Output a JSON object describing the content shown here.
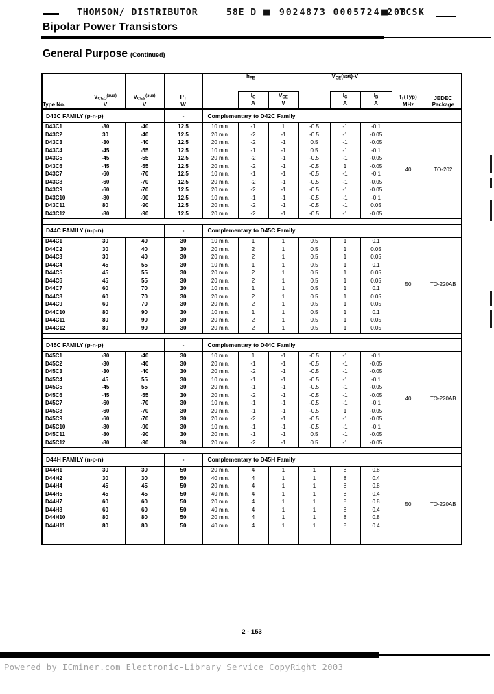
{
  "banner": {
    "brand": "THOMSON/ DISTRIBUTOR",
    "code": "58E D",
    "serial": "9024873 0005724 208",
    "suffix": "TCSK",
    "box_glyph": "■"
  },
  "page": {
    "product_line": "Bipolar Power Transistors",
    "section_title": "General Purpose",
    "section_subtitle": "(Continued)",
    "page_number": "2 - 153",
    "watermark": "Powered by ICminer.com Electronic-Library Service CopyRight 2003"
  },
  "table": {
    "headers": {
      "type_no": "Type No.",
      "vceo": {
        "base": "V",
        "sub": "CEO",
        "sup": "(sus)",
        "unit": "V"
      },
      "vces": {
        "base": "V",
        "sub": "CES",
        "sup": "(sus)",
        "unit": "V"
      },
      "pt": {
        "base": "P",
        "sub": "T",
        "unit": "W"
      },
      "hfe": {
        "base": "h",
        "sub": "FE"
      },
      "hfe_ic": {
        "base": "I",
        "sub": "C",
        "unit": "A"
      },
      "hfe_vce": {
        "base": "V",
        "sub": "CE",
        "unit": "V"
      },
      "vcesat": {
        "base": "V",
        "sub": "CE",
        "suffix": "(sat)-V"
      },
      "sat_ic": {
        "base": "I",
        "sub": "C",
        "unit": "A"
      },
      "sat_ib": {
        "base": "I",
        "sub": "B",
        "unit": "A"
      },
      "ft": {
        "base": "f",
        "sub": "T",
        "suffix": "(Typ)",
        "unit": "MHz"
      },
      "jedec": {
        "line1": "JEDEC",
        "line2": "Package"
      }
    },
    "sections": [
      {
        "family": "D43C FAMILY (p-n-p)",
        "pt_cell": "-",
        "note": "Complementary to D42C Family",
        "ft": "40",
        "package": "TO-202",
        "rows": [
          [
            "D43C1",
            "-30",
            "-40",
            "12.5",
            "10 min.",
            "-1",
            "1",
            "-0.5",
            "-1",
            "-0.1"
          ],
          [
            "D43C2",
            "30",
            "-40",
            "12.5",
            "20 min.",
            "-2",
            "-1",
            "-0.5",
            "-1",
            "-0.05"
          ],
          [
            "D43C3",
            "-30",
            "-40",
            "12.5",
            "20 min.",
            "-2",
            "-1",
            "0.5",
            "-1",
            "-0.05"
          ],
          [
            "D43C4",
            "-45",
            "-55",
            "12.5",
            "10 min.",
            "-1",
            "-1",
            "0.5",
            "-1",
            "-0.1"
          ],
          [
            "D43C5",
            "-45",
            "-55",
            "12.5",
            "20 min.",
            "-2",
            "-1",
            "-0.5",
            "-1",
            "-0.05"
          ],
          [
            "D43C6",
            "-45",
            "-55",
            "12.5",
            "20 min.",
            "-2",
            "-1",
            "-0.5",
            "1",
            "-0.05"
          ],
          [
            "D43C7",
            "-60",
            "-70",
            "12.5",
            "10 min.",
            "-1",
            "-1",
            "-0.5",
            "-1",
            "-0.1"
          ],
          [
            "D43C8",
            "-60",
            "-70",
            "12.5",
            "20 min.",
            "-2",
            "-1",
            "-0.5",
            "-1",
            "-0.05"
          ],
          [
            "D43C9",
            "-60",
            "-70",
            "12.5",
            "20 min.",
            "-2",
            "-1",
            "-0.5",
            "-1",
            "-0.05"
          ],
          [
            "D43C10",
            "-80",
            "-90",
            "12.5",
            "10 min.",
            "-1",
            "-1",
            "-0.5",
            "-1",
            "-0.1"
          ],
          [
            "D43C11",
            "80",
            "-90",
            "12.5",
            "20 min.",
            "-2",
            "-1",
            "-0.5",
            "-1",
            "0.05"
          ],
          [
            "D43C12",
            "-80",
            "-90",
            "12.5",
            "20 min.",
            "-2",
            "-1",
            "-0.5",
            "-1",
            "-0.05"
          ]
        ]
      },
      {
        "family": "D44C FAMILY (n-p-n)",
        "pt_cell": "-",
        "note": "Complementary to D45C Family",
        "ft": "50",
        "package": "TO-220AB",
        "rows": [
          [
            "D44C1",
            "30",
            "40",
            "30",
            "10 min.",
            "1",
            "1",
            "0.5",
            "1",
            "0.1"
          ],
          [
            "D44C2",
            "30",
            "40",
            "30",
            "20 min.",
            "2",
            "1",
            "0.5",
            "1",
            "0.05"
          ],
          [
            "D44C3",
            "30",
            "40",
            "30",
            "20 min.",
            "2",
            "1",
            "0.5",
            "1",
            "0.05"
          ],
          [
            "D44C4",
            "45",
            "55",
            "30",
            "10 min.",
            "1",
            "1",
            "0.5",
            "1",
            "0.1"
          ],
          [
            "D44C5",
            "45",
            "55",
            "30",
            "20 min.",
            "2",
            "1",
            "0.5",
            "1",
            "0.05"
          ],
          [
            "D44C6",
            "45",
            "55",
            "30",
            "20 min.",
            "2",
            "1",
            "0.5",
            "1",
            "0.05"
          ],
          [
            "D44C7",
            "60",
            "70",
            "30",
            "10 min.",
            "1",
            "1",
            "0.5",
            "1",
            "0.1"
          ],
          [
            "D44C8",
            "60",
            "70",
            "30",
            "20 min.",
            "2",
            "1",
            "0.5",
            "1",
            "0.05"
          ],
          [
            "D44C9",
            "60",
            "70",
            "30",
            "20 min.",
            "2",
            "1",
            "0.5",
            "1",
            "0.05"
          ],
          [
            "D44C10",
            "80",
            "90",
            "30",
            "10 min.",
            "1",
            "1",
            "0.5",
            "1",
            "0.1"
          ],
          [
            "D44C11",
            "80",
            "90",
            "30",
            "20 min.",
            "2",
            "1",
            "0.5",
            "1",
            "0.05"
          ],
          [
            "D44C12",
            "80",
            "90",
            "30",
            "20 min.",
            "2",
            "1",
            "0.5",
            "1",
            "0.05"
          ]
        ]
      },
      {
        "family": "D45C FAMILY (p-n-p)",
        "pt_cell": "-",
        "note": "Complementary to D44C Family",
        "ft": "40",
        "package": "TO-220AB",
        "rows": [
          [
            "D45C1",
            "-30",
            "-40",
            "30",
            "10 min.",
            "1",
            "-1",
            "-0.5",
            "-1",
            "-0.1"
          ],
          [
            "D45C2",
            "-30",
            "-40",
            "30",
            "20 min.",
            "-1",
            "-1",
            "-0.5",
            "-1",
            "-0.05"
          ],
          [
            "D45C3",
            "-30",
            "-40",
            "30",
            "20 min.",
            "-2",
            "-1",
            "-0.5",
            "-1",
            "-0.05"
          ],
          [
            "D45C4",
            "45",
            "55",
            "30",
            "10 min.",
            "-1",
            "-1",
            "-0.5",
            "-1",
            "-0.1"
          ],
          [
            "D45C5",
            "-45",
            "55",
            "30",
            "20 min.",
            "-1",
            "-1",
            "-0.5",
            "-1",
            "-0.05"
          ],
          [
            "D45C6",
            "-45",
            "-55",
            "30",
            "20 min.",
            "-2",
            "-1",
            "-0.5",
            "-1",
            "-0.05"
          ],
          [
            "D45C7",
            "-60",
            "-70",
            "30",
            "10 min.",
            "-1",
            "-1",
            "-0.5",
            "-1",
            "-0.1"
          ],
          [
            "D45C8",
            "-60",
            "-70",
            "30",
            "20 min.",
            "-1",
            "-1",
            "-0.5",
            "1",
            "-0.05"
          ],
          [
            "D45C9",
            "-60",
            "-70",
            "30",
            "20 min.",
            "-2",
            "-1",
            "-0.5",
            "-1",
            "-0.05"
          ],
          [
            "D45C10",
            "-80",
            "-90",
            "30",
            "10 min.",
            "-1",
            "-1",
            "-0.5",
            "-1",
            "-0.1"
          ],
          [
            "D45C11",
            "-80",
            "-90",
            "30",
            "20 min.",
            "-1",
            "-1",
            "0.5",
            "-1",
            "-0.05"
          ],
          [
            "D45C12",
            "-80",
            "-90",
            "30",
            "20 min.",
            "-2",
            "-1",
            "0.5",
            "-1",
            "-0.05"
          ]
        ]
      },
      {
        "family": "D44H FAMILY (n-p-n)",
        "pt_cell": "-",
        "note": "Complementary to D45H Family",
        "ft": "50",
        "package": "TO-220AB",
        "rows": [
          [
            "D44H1",
            "30",
            "30",
            "50",
            "20 min.",
            "4",
            "1",
            "1",
            "8",
            "0.8"
          ],
          [
            "D44H2",
            "30",
            "30",
            "50",
            "40 min.",
            "4",
            "1",
            "1",
            "8",
            "0.4"
          ],
          [
            "D44H4",
            "45",
            "45",
            "50",
            "20 min.",
            "4",
            "1",
            "1",
            "8",
            "0.8"
          ],
          [
            "D44H5",
            "45",
            "45",
            "50",
            "40 min.",
            "4",
            "1",
            "1",
            "8",
            "0.4"
          ],
          [
            "D44H7",
            "60",
            "60",
            "50",
            "20 min.",
            "4",
            "1",
            "1",
            "8",
            "0.8"
          ],
          [
            "D44H8",
            "60",
            "60",
            "50",
            "40 min.",
            "4",
            "1",
            "1",
            "8",
            "0.4"
          ],
          [
            "D44H10",
            "80",
            "80",
            "50",
            "20 min.",
            "4",
            "1",
            "1",
            "8",
            "0.8"
          ],
          [
            "D44H11",
            "80",
            "80",
            "50",
            "40 min.",
            "4",
            "1",
            "1",
            "8",
            "0.4"
          ]
        ]
      }
    ]
  }
}
